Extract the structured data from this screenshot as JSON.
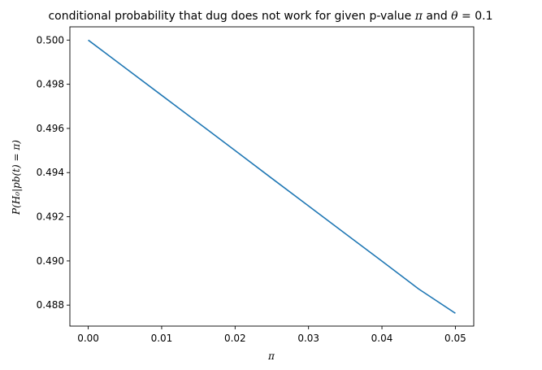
{
  "chart_data": {
    "type": "line",
    "title": "conditional probability that dug does not work for given p-value π and θ = 0.1",
    "title_plain": "conditional probability that dug does not work for given p-value ",
    "title_pi": "π",
    "title_and": " and ",
    "title_theta": "θ",
    "title_eq": " = 0.1",
    "xlabel": "π",
    "ylabel": "P(H₀|pb(t) = π)",
    "xlim": [
      -0.0025,
      0.0525
    ],
    "ylim": [
      0.48705,
      0.5006
    ],
    "xticks": [
      0.0,
      0.01,
      0.02,
      0.03,
      0.04,
      0.05
    ],
    "xtick_labels": [
      "0.00",
      "0.01",
      "0.02",
      "0.03",
      "0.04",
      "0.05"
    ],
    "yticks": [
      0.488,
      0.49,
      0.492,
      0.494,
      0.496,
      0.498,
      0.5
    ],
    "ytick_labels": [
      "0.488",
      "0.490",
      "0.492",
      "0.494",
      "0.496",
      "0.498",
      "0.500"
    ],
    "grid": false,
    "series": [
      {
        "color": "#1f77b4",
        "x": [
          0.0,
          0.005,
          0.01,
          0.015,
          0.02,
          0.025,
          0.03,
          0.035,
          0.04,
          0.045,
          0.05
        ],
        "y": [
          0.5,
          0.49875,
          0.4975,
          0.49625,
          0.495,
          0.49374,
          0.49249,
          0.49124,
          0.48999,
          0.48873,
          0.48763
        ]
      }
    ]
  }
}
